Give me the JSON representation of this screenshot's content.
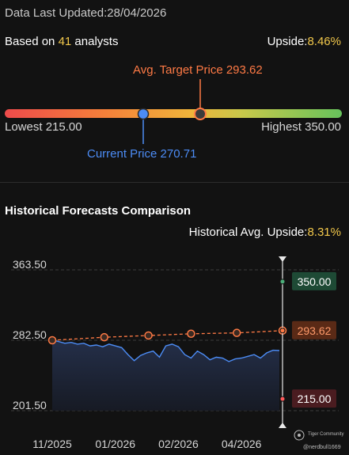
{
  "header": {
    "updated_label": "Data Last Updated:",
    "updated_date": "28/04/2026"
  },
  "summary": {
    "based_prefix": "Based on ",
    "analyst_count": "41",
    "based_suffix": " analysts",
    "upside_label": "Upside:",
    "upside_value": "8.46%"
  },
  "gauge": {
    "avg_target_label": "Avg. Target Price 293.62",
    "lowest_label": "Lowest 215.00",
    "highest_label": "Highest 350.00",
    "current_label": "Current Price 270.71",
    "min": 215.0,
    "max": 350.0,
    "current": 270.71,
    "avg_target": 293.62
  },
  "history": {
    "title": "Historical Forecasts Comparison",
    "upside_label": "Historical Avg. Upside:",
    "upside_value": "8.31%"
  },
  "watermark": {
    "brand": "Tiger Community",
    "user": "@nerdbull1669"
  },
  "colors": {
    "price_line": "#4c8cf5",
    "forecast_line": "#ff7a45",
    "high_tag": "#1e4a35",
    "avg_tag": "#5a2a16",
    "low_tag": "#4a1c20"
  },
  "chart_data": {
    "type": "line",
    "yticks": [
      "363.50",
      "282.50",
      "201.50"
    ],
    "ytick_values": [
      363.5,
      282.5,
      201.5
    ],
    "ylim": [
      201.5,
      363.5
    ],
    "xticks": [
      "11/2025",
      "01/2026",
      "02/2026",
      "04/2026"
    ],
    "xtick_positions": [
      0.0,
      2.0,
      4.0,
      6.0
    ],
    "xlim": [
      0,
      7.3
    ],
    "series": [
      {
        "role": "forecast",
        "x": [
          0,
          1.65,
          3.05,
          4.4,
          5.85,
          7.3
        ],
        "values": [
          282.5,
          286.0,
          288.0,
          290.0,
          291.0,
          293.62
        ]
      },
      {
        "role": "price",
        "x": [
          0,
          0.2,
          0.4,
          0.6,
          0.8,
          1.0,
          1.2,
          1.4,
          1.6,
          1.8,
          2.0,
          2.2,
          2.4,
          2.6,
          2.8,
          3.0,
          3.2,
          3.4,
          3.6,
          3.8,
          4.0,
          4.2,
          4.4,
          4.6,
          4.8,
          5.0,
          5.2,
          5.4,
          5.6,
          5.8,
          6.0,
          6.2,
          6.4,
          6.6,
          6.8,
          7.0,
          7.2
        ],
        "values": [
          282.5,
          281.0,
          279.0,
          280.0,
          278.0,
          279.0,
          276.0,
          277.0,
          275.0,
          278.0,
          276.0,
          274.0,
          266.0,
          259.0,
          265.0,
          268.0,
          270.0,
          263.0,
          276.0,
          278.0,
          275.0,
          266.0,
          262.0,
          270.0,
          266.0,
          260.0,
          263.0,
          262.0,
          258.0,
          261.0,
          262.0,
          264.0,
          266.0,
          262.0,
          268.0,
          271.0,
          270.71
        ]
      }
    ],
    "markers": [
      {
        "label": "350.00",
        "value": 350.0,
        "kind": "high"
      },
      {
        "label": "293.62",
        "value": 293.62,
        "kind": "avg"
      },
      {
        "label": "215.00",
        "value": 215.0,
        "kind": "low"
      }
    ]
  }
}
